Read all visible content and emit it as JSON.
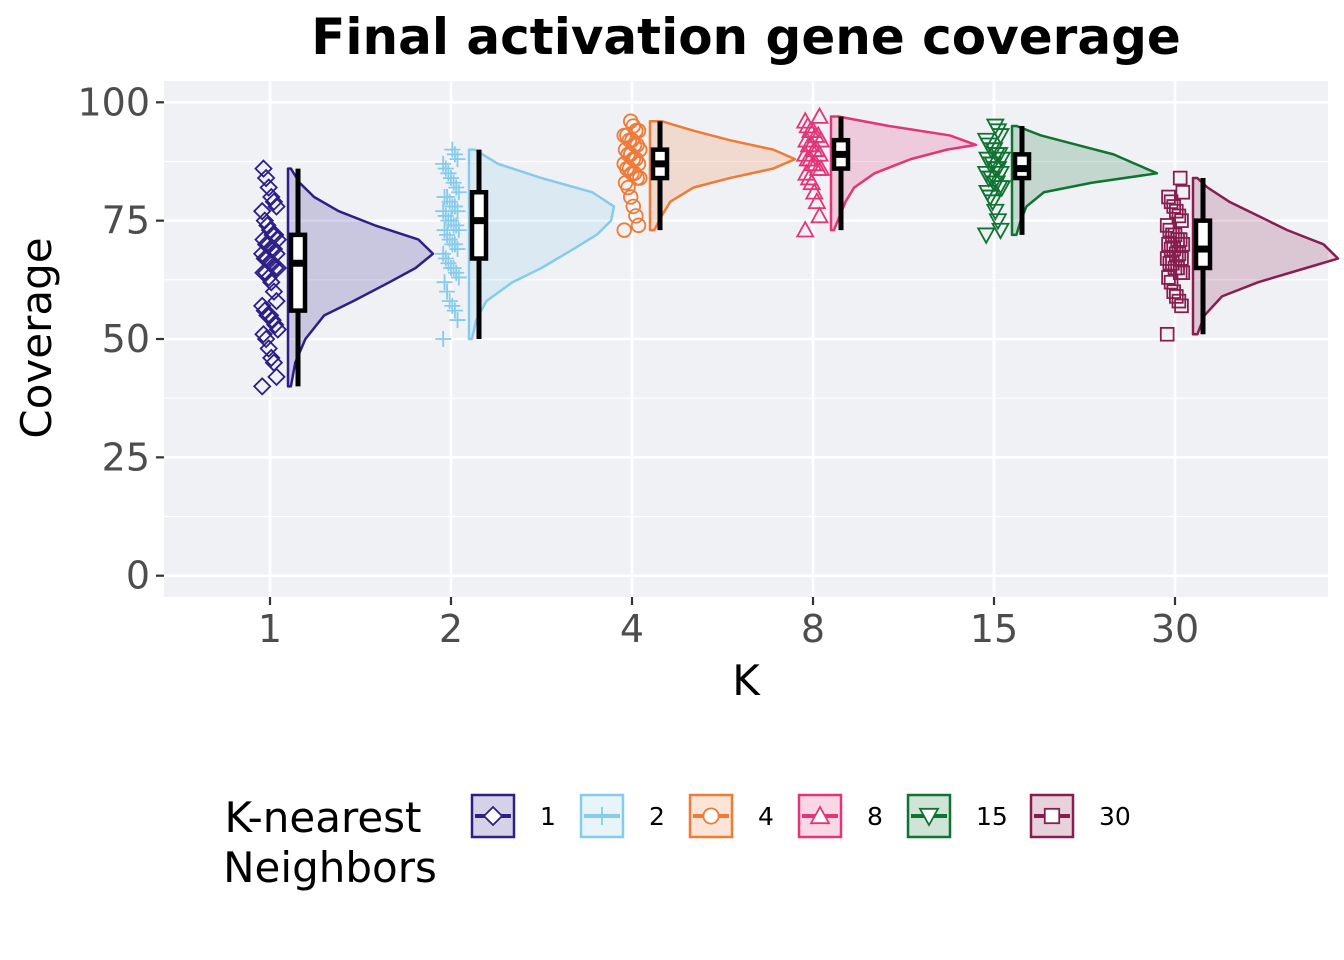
{
  "chart_data": {
    "type": "raincloud",
    "title": "Final activation gene coverage",
    "xlabel": "K",
    "ylabel": "Coverage",
    "ylim": [
      -4.5,
      104.5
    ],
    "yticks": [
      0,
      25,
      50,
      75,
      100
    ],
    "ytick_labels": [
      "0",
      "25",
      "50",
      "75",
      "100"
    ],
    "grid": true,
    "legend_title": [
      "K-nearest",
      "Neighbors"
    ],
    "legend_position": "bottom",
    "categories": [
      "1",
      "2",
      "4",
      "8",
      "15",
      "30"
    ],
    "series": [
      {
        "name": "1",
        "color": "#2e1e87",
        "marker": "diamond",
        "points": [
          40,
          42,
          45,
          46,
          48,
          50,
          51,
          52,
          53,
          54,
          55,
          55,
          56,
          57,
          58,
          60,
          62,
          63,
          64,
          64,
          65,
          65,
          66,
          66,
          67,
          67,
          68,
          68,
          69,
          69,
          70,
          70,
          71,
          71,
          72,
          72,
          73,
          74,
          75,
          77,
          78,
          79,
          80,
          82,
          84,
          86
        ],
        "min": 40,
        "q1": 56,
        "median": 66,
        "q3": 72,
        "max": 86,
        "density": [
          [
            40,
            0.02
          ],
          [
            45,
            0.05
          ],
          [
            50,
            0.12
          ],
          [
            55,
            0.25
          ],
          [
            58,
            0.45
          ],
          [
            62,
            0.7
          ],
          [
            65,
            0.88
          ],
          [
            68,
            1.0
          ],
          [
            71,
            0.9
          ],
          [
            74,
            0.6
          ],
          [
            77,
            0.35
          ],
          [
            80,
            0.18
          ],
          [
            83,
            0.08
          ],
          [
            86,
            0.02
          ]
        ]
      },
      {
        "name": "2",
        "color": "#86cbeb",
        "marker": "plus",
        "points": [
          50,
          54,
          56,
          57,
          58,
          60,
          62,
          63,
          64,
          65,
          65,
          66,
          67,
          68,
          69,
          70,
          70,
          71,
          72,
          73,
          73,
          74,
          74,
          75,
          75,
          76,
          77,
          77,
          78,
          78,
          79,
          80,
          80,
          81,
          82,
          83,
          84,
          85,
          86,
          87,
          88,
          89,
          90
        ],
        "min": 50,
        "q1": 67,
        "median": 75,
        "q3": 81,
        "max": 90,
        "density": [
          [
            50,
            0.02
          ],
          [
            54,
            0.05
          ],
          [
            58,
            0.12
          ],
          [
            62,
            0.3
          ],
          [
            65,
            0.5
          ],
          [
            69,
            0.72
          ],
          [
            72,
            0.88
          ],
          [
            75,
            0.98
          ],
          [
            78,
            1.0
          ],
          [
            81,
            0.85
          ],
          [
            84,
            0.5
          ],
          [
            87,
            0.2
          ],
          [
            90,
            0.04
          ]
        ]
      },
      {
        "name": "4",
        "color": "#ee7b36",
        "marker": "circle",
        "points": [
          73,
          74,
          76,
          78,
          80,
          82,
          83,
          84,
          84,
          85,
          85,
          86,
          86,
          87,
          87,
          88,
          88,
          89,
          89,
          90,
          90,
          91,
          91,
          92,
          92,
          93,
          93,
          94,
          94,
          95,
          96
        ],
        "min": 73,
        "q1": 84,
        "median": 87,
        "q3": 90,
        "max": 96,
        "density": [
          [
            73,
            0.03
          ],
          [
            76,
            0.08
          ],
          [
            79,
            0.14
          ],
          [
            82,
            0.3
          ],
          [
            84,
            0.55
          ],
          [
            86,
            0.85
          ],
          [
            88,
            1.0
          ],
          [
            90,
            0.85
          ],
          [
            92,
            0.55
          ],
          [
            94,
            0.3
          ],
          [
            96,
            0.08
          ]
        ]
      },
      {
        "name": "8",
        "color": "#e23678",
        "marker": "triangle-up",
        "points": [
          73,
          76,
          79,
          81,
          83,
          84,
          85,
          86,
          86,
          87,
          87,
          88,
          88,
          89,
          89,
          90,
          90,
          91,
          91,
          92,
          92,
          93,
          93,
          94,
          94,
          95,
          96,
          97
        ],
        "min": 73,
        "q1": 86,
        "median": 89,
        "q3": 92,
        "max": 97,
        "density": [
          [
            73,
            0.02
          ],
          [
            76,
            0.06
          ],
          [
            79,
            0.1
          ],
          [
            82,
            0.16
          ],
          [
            85,
            0.3
          ],
          [
            88,
            0.55
          ],
          [
            90,
            0.8
          ],
          [
            91,
            1.0
          ],
          [
            93,
            0.82
          ],
          [
            95,
            0.4
          ],
          [
            97,
            0.05
          ]
        ]
      },
      {
        "name": "15",
        "color": "#0f7431",
        "marker": "triangle-down",
        "points": [
          72,
          73,
          75,
          77,
          79,
          80,
          81,
          82,
          82,
          83,
          83,
          84,
          84,
          85,
          85,
          86,
          86,
          87,
          87,
          88,
          88,
          89,
          89,
          90,
          90,
          91,
          92,
          93,
          94,
          95
        ],
        "min": 72,
        "q1": 84,
        "median": 86,
        "q3": 89,
        "max": 95,
        "density": [
          [
            72,
            0.03
          ],
          [
            75,
            0.06
          ],
          [
            78,
            0.1
          ],
          [
            81,
            0.22
          ],
          [
            83,
            0.55
          ],
          [
            85,
            1.0
          ],
          [
            87,
            0.85
          ],
          [
            89,
            0.7
          ],
          [
            91,
            0.45
          ],
          [
            93,
            0.2
          ],
          [
            95,
            0.03
          ]
        ]
      },
      {
        "name": "30",
        "color": "#881e50",
        "marker": "square",
        "points": [
          51,
          57,
          58,
          59,
          60,
          62,
          63,
          64,
          64,
          65,
          65,
          66,
          66,
          67,
          67,
          68,
          68,
          69,
          69,
          70,
          70,
          71,
          71,
          72,
          72,
          73,
          74,
          75,
          76,
          77,
          78,
          79,
          80,
          81,
          84
        ],
        "min": 51,
        "q1": 65,
        "median": 69,
        "q3": 75,
        "max": 84,
        "density": [
          [
            51,
            0.03
          ],
          [
            55,
            0.08
          ],
          [
            59,
            0.2
          ],
          [
            62,
            0.45
          ],
          [
            65,
            0.78
          ],
          [
            67,
            1.0
          ],
          [
            70,
            0.9
          ],
          [
            73,
            0.65
          ],
          [
            76,
            0.45
          ],
          [
            79,
            0.25
          ],
          [
            82,
            0.1
          ],
          [
            84,
            0.03
          ]
        ]
      }
    ]
  }
}
